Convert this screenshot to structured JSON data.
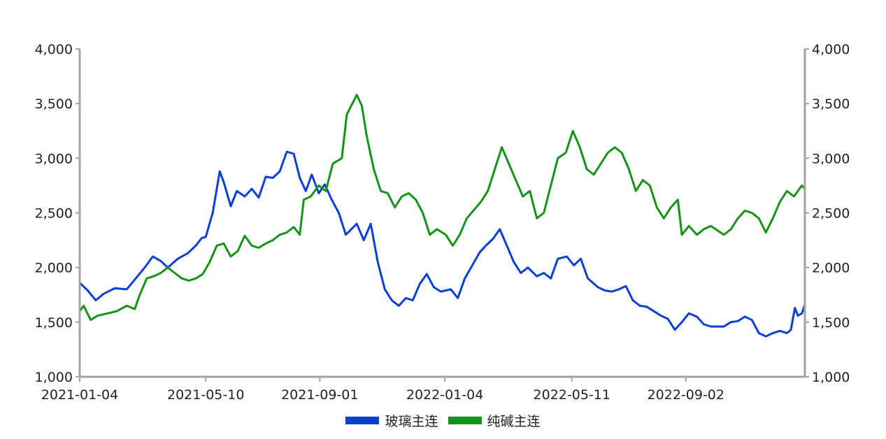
{
  "chart_data": {
    "type": "line",
    "title": "",
    "xlabel": "",
    "ylabel_left": "",
    "ylabel_right": "",
    "x_range": [
      "2021-01-04",
      "2022-12-30"
    ],
    "x_ticks": [
      "2021-01-04",
      "2021-05-10",
      "2021-09-01",
      "2022-01-04",
      "2022-05-11",
      "2022-09-02"
    ],
    "y_left": {
      "min": 1000,
      "max": 4000,
      "ticks": [
        "1,000",
        "1,500",
        "2,000",
        "2,500",
        "3,000",
        "3,500",
        "4,000"
      ]
    },
    "y_right": {
      "min": 1000,
      "max": 4000,
      "ticks": [
        "1,000",
        "1,500",
        "2,000",
        "2,500",
        "3,000",
        "3,500",
        "4,000"
      ]
    },
    "grid": false,
    "legend_position": "bottom-center",
    "series": [
      {
        "name": "玻璃主连",
        "color": "#0a3fd6",
        "axis": "left",
        "points": [
          [
            "2021-01-04",
            1860
          ],
          [
            "2021-01-12",
            1790
          ],
          [
            "2021-01-20",
            1700
          ],
          [
            "2021-01-28",
            1760
          ],
          [
            "2021-02-08",
            1810
          ],
          [
            "2021-02-20",
            1800
          ],
          [
            "2021-03-01",
            1900
          ],
          [
            "2021-03-10",
            2000
          ],
          [
            "2021-03-18",
            2100
          ],
          [
            "2021-03-26",
            2060
          ],
          [
            "2021-04-02",
            2000
          ],
          [
            "2021-04-12",
            2080
          ],
          [
            "2021-04-22",
            2130
          ],
          [
            "2021-04-30",
            2200
          ],
          [
            "2021-05-06",
            2270
          ],
          [
            "2021-05-10",
            2280
          ],
          [
            "2021-05-17",
            2500
          ],
          [
            "2021-05-24",
            2880
          ],
          [
            "2021-05-28",
            2780
          ],
          [
            "2021-06-04",
            2560
          ],
          [
            "2021-06-10",
            2700
          ],
          [
            "2021-06-18",
            2650
          ],
          [
            "2021-06-25",
            2720
          ],
          [
            "2021-07-02",
            2640
          ],
          [
            "2021-07-09",
            2830
          ],
          [
            "2021-07-16",
            2820
          ],
          [
            "2021-07-23",
            2880
          ],
          [
            "2021-07-30",
            3060
          ],
          [
            "2021-08-06",
            3040
          ],
          [
            "2021-08-12",
            2820
          ],
          [
            "2021-08-18",
            2700
          ],
          [
            "2021-08-24",
            2850
          ],
          [
            "2021-08-31",
            2680
          ],
          [
            "2021-09-06",
            2760
          ],
          [
            "2021-09-13",
            2620
          ],
          [
            "2021-09-20",
            2500
          ],
          [
            "2021-09-27",
            2300
          ],
          [
            "2021-10-08",
            2400
          ],
          [
            "2021-10-15",
            2250
          ],
          [
            "2021-10-22",
            2400
          ],
          [
            "2021-10-29",
            2050
          ],
          [
            "2021-11-05",
            1800
          ],
          [
            "2021-11-12",
            1700
          ],
          [
            "2021-11-19",
            1650
          ],
          [
            "2021-11-26",
            1720
          ],
          [
            "2021-12-03",
            1700
          ],
          [
            "2021-12-10",
            1850
          ],
          [
            "2021-12-17",
            1940
          ],
          [
            "2021-12-24",
            1820
          ],
          [
            "2021-12-31",
            1780
          ],
          [
            "2022-01-10",
            1800
          ],
          [
            "2022-01-17",
            1720
          ],
          [
            "2022-01-24",
            1900
          ],
          [
            "2022-02-08",
            2140
          ],
          [
            "2022-02-14",
            2200
          ],
          [
            "2022-02-21",
            2260
          ],
          [
            "2022-02-28",
            2350
          ],
          [
            "2022-03-07",
            2200
          ],
          [
            "2022-03-14",
            2050
          ],
          [
            "2022-03-21",
            1950
          ],
          [
            "2022-03-28",
            2000
          ],
          [
            "2022-04-06",
            1920
          ],
          [
            "2022-04-13",
            1950
          ],
          [
            "2022-04-20",
            1900
          ],
          [
            "2022-04-27",
            2080
          ],
          [
            "2022-05-06",
            2100
          ],
          [
            "2022-05-13",
            2020
          ],
          [
            "2022-05-20",
            2080
          ],
          [
            "2022-05-27",
            1900
          ],
          [
            "2022-06-06",
            1820
          ],
          [
            "2022-06-13",
            1790
          ],
          [
            "2022-06-20",
            1780
          ],
          [
            "2022-06-27",
            1800
          ],
          [
            "2022-07-04",
            1830
          ],
          [
            "2022-07-11",
            1700
          ],
          [
            "2022-07-18",
            1650
          ],
          [
            "2022-07-25",
            1640
          ],
          [
            "2022-08-01",
            1600
          ],
          [
            "2022-08-08",
            1560
          ],
          [
            "2022-08-15",
            1530
          ],
          [
            "2022-08-22",
            1430
          ],
          [
            "2022-08-29",
            1500
          ],
          [
            "2022-09-05",
            1580
          ],
          [
            "2022-09-13",
            1550
          ],
          [
            "2022-09-20",
            1480
          ],
          [
            "2022-09-27",
            1460
          ],
          [
            "2022-10-10",
            1460
          ],
          [
            "2022-10-17",
            1500
          ],
          [
            "2022-10-24",
            1510
          ],
          [
            "2022-10-31",
            1550
          ],
          [
            "2022-11-07",
            1520
          ],
          [
            "2022-11-14",
            1400
          ],
          [
            "2022-11-21",
            1370
          ],
          [
            "2022-11-28",
            1400
          ],
          [
            "2022-12-05",
            1420
          ],
          [
            "2022-12-12",
            1400
          ],
          [
            "2022-12-16",
            1430
          ],
          [
            "2022-12-20",
            1630
          ],
          [
            "2022-12-23",
            1560
          ],
          [
            "2022-12-27",
            1580
          ],
          [
            "2022-12-30",
            1660
          ]
        ]
      },
      {
        "name": "纯碱主连",
        "color": "#139418",
        "axis": "right",
        "points": [
          [
            "2021-01-04",
            1600
          ],
          [
            "2021-01-08",
            1650
          ],
          [
            "2021-01-15",
            1520
          ],
          [
            "2021-01-22",
            1560
          ],
          [
            "2021-02-01",
            1580
          ],
          [
            "2021-02-10",
            1600
          ],
          [
            "2021-02-20",
            1650
          ],
          [
            "2021-02-28",
            1620
          ],
          [
            "2021-03-05",
            1750
          ],
          [
            "2021-03-12",
            1900
          ],
          [
            "2021-03-19",
            1920
          ],
          [
            "2021-03-26",
            1950
          ],
          [
            "2021-04-02",
            2000
          ],
          [
            "2021-04-09",
            1950
          ],
          [
            "2021-04-16",
            1900
          ],
          [
            "2021-04-23",
            1880
          ],
          [
            "2021-04-30",
            1900
          ],
          [
            "2021-05-07",
            1940
          ],
          [
            "2021-05-14",
            2050
          ],
          [
            "2021-05-21",
            2200
          ],
          [
            "2021-05-28",
            2220
          ],
          [
            "2021-06-04",
            2100
          ],
          [
            "2021-06-11",
            2150
          ],
          [
            "2021-06-18",
            2290
          ],
          [
            "2021-06-25",
            2200
          ],
          [
            "2021-07-02",
            2180
          ],
          [
            "2021-07-09",
            2220
          ],
          [
            "2021-07-16",
            2250
          ],
          [
            "2021-07-23",
            2300
          ],
          [
            "2021-07-30",
            2320
          ],
          [
            "2021-08-06",
            2370
          ],
          [
            "2021-08-12",
            2300
          ],
          [
            "2021-08-16",
            2620
          ],
          [
            "2021-08-23",
            2650
          ],
          [
            "2021-08-31",
            2750
          ],
          [
            "2021-09-07",
            2700
          ],
          [
            "2021-09-14",
            2950
          ],
          [
            "2021-09-23",
            3000
          ],
          [
            "2021-09-28",
            3400
          ],
          [
            "2021-10-08",
            3580
          ],
          [
            "2021-10-13",
            3480
          ],
          [
            "2021-10-18",
            3200
          ],
          [
            "2021-10-25",
            2900
          ],
          [
            "2021-11-01",
            2700
          ],
          [
            "2021-11-08",
            2680
          ],
          [
            "2021-11-15",
            2550
          ],
          [
            "2021-11-22",
            2650
          ],
          [
            "2021-11-29",
            2680
          ],
          [
            "2021-12-06",
            2620
          ],
          [
            "2021-12-13",
            2500
          ],
          [
            "2021-12-20",
            2300
          ],
          [
            "2021-12-27",
            2350
          ],
          [
            "2022-01-05",
            2300
          ],
          [
            "2022-01-12",
            2200
          ],
          [
            "2022-01-19",
            2300
          ],
          [
            "2022-01-26",
            2450
          ],
          [
            "2022-02-09",
            2600
          ],
          [
            "2022-02-16",
            2700
          ],
          [
            "2022-02-23",
            2900
          ],
          [
            "2022-03-02",
            3100
          ],
          [
            "2022-03-09",
            2950
          ],
          [
            "2022-03-16",
            2800
          ],
          [
            "2022-03-23",
            2650
          ],
          [
            "2022-03-30",
            2700
          ],
          [
            "2022-04-06",
            2450
          ],
          [
            "2022-04-13",
            2500
          ],
          [
            "2022-04-20",
            2750
          ],
          [
            "2022-04-27",
            3000
          ],
          [
            "2022-05-05",
            3050
          ],
          [
            "2022-05-12",
            3250
          ],
          [
            "2022-05-19",
            3100
          ],
          [
            "2022-05-26",
            2900
          ],
          [
            "2022-06-02",
            2850
          ],
          [
            "2022-06-09",
            2950
          ],
          [
            "2022-06-16",
            3050
          ],
          [
            "2022-06-23",
            3100
          ],
          [
            "2022-06-30",
            3050
          ],
          [
            "2022-07-07",
            2900
          ],
          [
            "2022-07-14",
            2700
          ],
          [
            "2022-07-21",
            2800
          ],
          [
            "2022-07-28",
            2750
          ],
          [
            "2022-08-04",
            2550
          ],
          [
            "2022-08-11",
            2450
          ],
          [
            "2022-08-18",
            2550
          ],
          [
            "2022-08-25",
            2620
          ],
          [
            "2022-08-29",
            2300
          ],
          [
            "2022-09-05",
            2380
          ],
          [
            "2022-09-13",
            2300
          ],
          [
            "2022-09-20",
            2350
          ],
          [
            "2022-09-27",
            2380
          ],
          [
            "2022-10-10",
            2300
          ],
          [
            "2022-10-17",
            2350
          ],
          [
            "2022-10-24",
            2450
          ],
          [
            "2022-10-31",
            2520
          ],
          [
            "2022-11-07",
            2500
          ],
          [
            "2022-11-14",
            2450
          ],
          [
            "2022-11-21",
            2320
          ],
          [
            "2022-11-28",
            2450
          ],
          [
            "2022-12-05",
            2600
          ],
          [
            "2022-12-12",
            2700
          ],
          [
            "2022-12-19",
            2650
          ],
          [
            "2022-12-23",
            2700
          ],
          [
            "2022-12-27",
            2750
          ],
          [
            "2022-12-30",
            2720
          ]
        ]
      }
    ]
  }
}
